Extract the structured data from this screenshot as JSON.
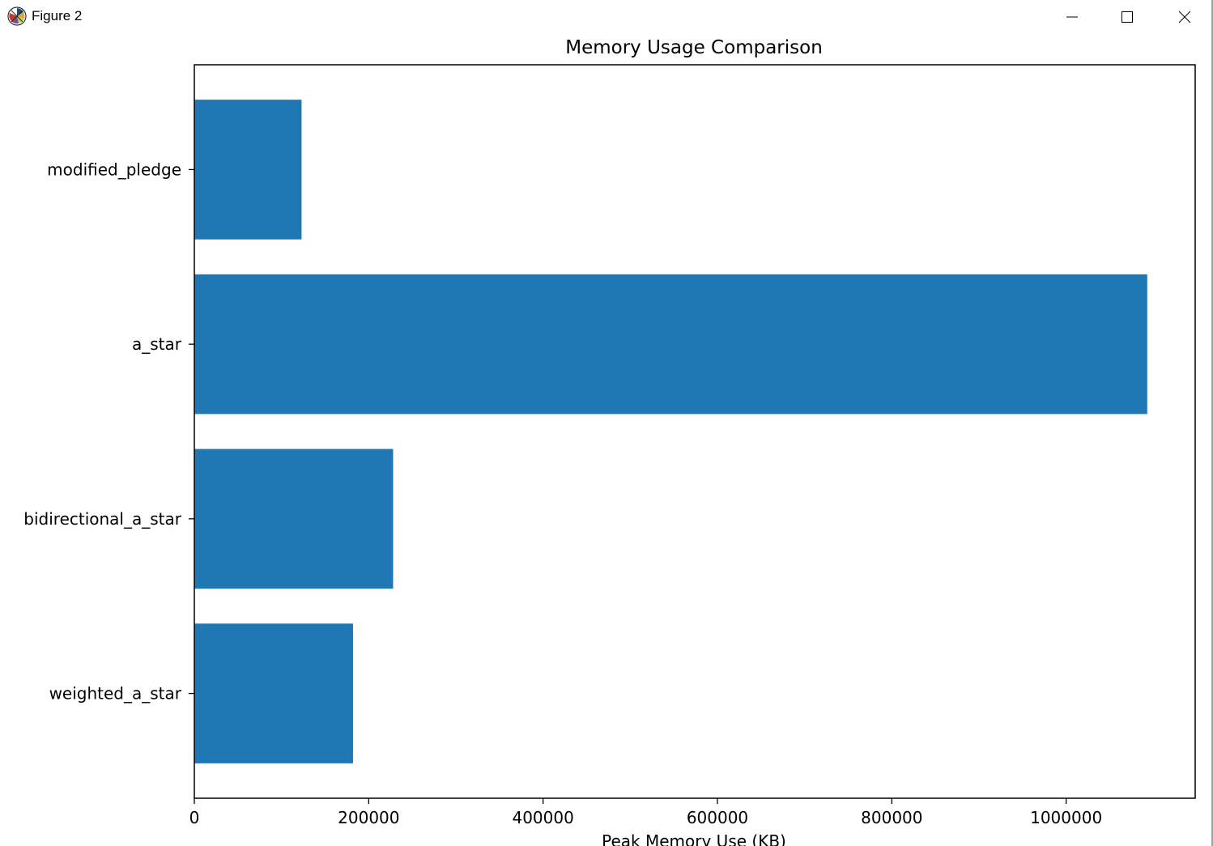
{
  "window": {
    "title": "Figure 2",
    "icon": "matplotlib-icon",
    "controls": [
      "minimize-icon",
      "maximize-icon",
      "close-icon"
    ]
  },
  "chart_data": {
    "type": "bar",
    "orientation": "horizontal",
    "title": "Memory Usage Comparison",
    "xlabel": "Peak Memory Use (KB)",
    "ylabel": "",
    "categories": [
      "modified_pledge",
      "a_star",
      "bidirectional_a_star",
      "weighted_a_star"
    ],
    "values": [
      123000,
      1093000,
      228000,
      182000
    ],
    "xlim": [
      0,
      1148000
    ],
    "xticks": [
      0,
      200000,
      400000,
      600000,
      800000,
      1000000
    ],
    "xtick_labels": [
      "0",
      "200000",
      "400000",
      "600000",
      "800000",
      "1000000"
    ],
    "bar_color": "#1f77b4",
    "grid": false,
    "legend": "none"
  }
}
